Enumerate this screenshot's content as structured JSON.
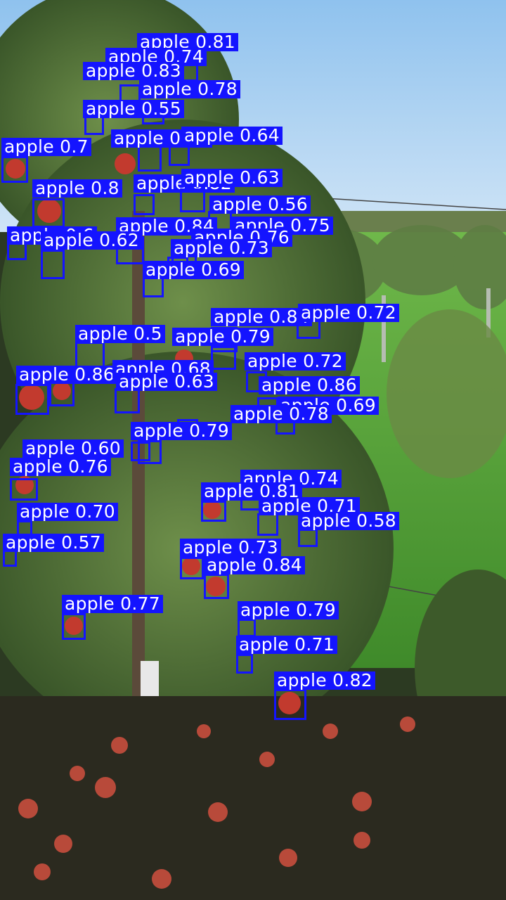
{
  "scene": {
    "description_icons": [
      "apple-tree-icon",
      "orchard-row-icon",
      "fallen-apple-icon"
    ],
    "colors": {
      "box": "#1414ff",
      "label_text": "#ffffff",
      "sky": "#9cc9ee",
      "grass": "#59a93a"
    }
  },
  "detections": [
    {
      "label": "apple 0.81"
    },
    {
      "label": "apple 0.74"
    },
    {
      "label": "apple 0.83"
    },
    {
      "label": "apple 0.78"
    },
    {
      "label": "apple 0.55"
    },
    {
      "label": "apple 0.89"
    },
    {
      "label": "apple 0.64"
    },
    {
      "label": "apple 0.7"
    },
    {
      "label": "apple 0.8"
    },
    {
      "label": "apple 0.82"
    },
    {
      "label": "apple 0.63"
    },
    {
      "label": "apple 0.56"
    },
    {
      "label": "apple 0.84"
    },
    {
      "label": "apple 0.75"
    },
    {
      "label": "apple 0.6"
    },
    {
      "label": "apple 0.62"
    },
    {
      "label": "apple 0.76"
    },
    {
      "label": "apple 0.73"
    },
    {
      "label": "apple 0.69"
    },
    {
      "label": "apple 0.84"
    },
    {
      "label": "apple 0.72"
    },
    {
      "label": "apple 0.79"
    },
    {
      "label": "apple 0.5"
    },
    {
      "label": "apple 0.72"
    },
    {
      "label": "apple 0.86"
    },
    {
      "label": "apple 0.68"
    },
    {
      "label": "apple 0.63"
    },
    {
      "label": "apple 0.86"
    },
    {
      "label": "apple 0.69"
    },
    {
      "label": "apple 0.78"
    },
    {
      "label": "apple 0.79"
    },
    {
      "label": "apple 0.60"
    },
    {
      "label": "apple 0.76"
    },
    {
      "label": "apple 0.74"
    },
    {
      "label": "apple 0.81"
    },
    {
      "label": "apple 0.71"
    },
    {
      "label": "apple 0.70"
    },
    {
      "label": "apple 0.58"
    },
    {
      "label": "apple 0.57"
    },
    {
      "label": "apple 0.73"
    },
    {
      "label": "apple 0.84"
    },
    {
      "label": "apple 0.77"
    },
    {
      "label": "apple 0.79"
    },
    {
      "label": "apple 0.71"
    },
    {
      "label": "apple 0.82"
    }
  ]
}
